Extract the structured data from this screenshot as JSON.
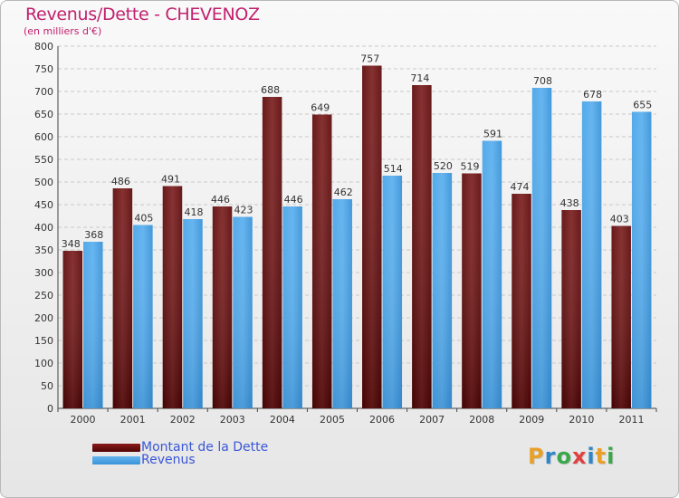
{
  "title": "Revenus/Dette - CHEVENOZ",
  "subtitle": "(en milliers d'€)",
  "legend": {
    "dette_label": "Montant de la Dette",
    "revenus_label": "Revenus"
  },
  "brand": {
    "letters": [
      "P",
      "r",
      "o",
      "x",
      "i",
      "t",
      "i"
    ],
    "colors": [
      "#e8a028",
      "#2e86c7",
      "#3aa84a",
      "#e04040",
      "#2e86c7",
      "#e8a028",
      "#3aa84a"
    ]
  },
  "colors": {
    "dette": "#6b0a0a",
    "revenus": "#3f9de2",
    "axis_text": "#333333"
  },
  "chart_data": {
    "type": "bar",
    "categories": [
      "2000",
      "2001",
      "2002",
      "2003",
      "2004",
      "2005",
      "2006",
      "2007",
      "2008",
      "2009",
      "2010",
      "2011"
    ],
    "series": [
      {
        "name": "Montant de la Dette",
        "values": [
          348,
          486,
          491,
          446,
          688,
          649,
          757,
          714,
          519,
          474,
          438,
          403
        ]
      },
      {
        "name": "Revenus",
        "values": [
          368,
          405,
          418,
          423,
          446,
          462,
          514,
          520,
          591,
          708,
          678,
          655
        ]
      }
    ],
    "title": "Revenus/Dette - CHEVENOZ",
    "ylabel": "(en milliers d'€)",
    "ylim": [
      0,
      800
    ],
    "yticks": [
      0,
      50,
      100,
      150,
      200,
      250,
      300,
      350,
      400,
      450,
      500,
      550,
      600,
      650,
      700,
      750,
      800
    ],
    "grid": true,
    "legend_position": "bottom-left"
  }
}
